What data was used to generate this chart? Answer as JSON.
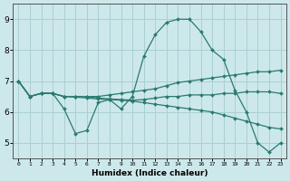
{
  "xlabel": "Humidex (Indice chaleur)",
  "xlim": [
    -0.5,
    23.5
  ],
  "ylim": [
    4.5,
    9.5
  ],
  "yticks": [
    5,
    6,
    7,
    8,
    9
  ],
  "xticks": [
    0,
    1,
    2,
    3,
    4,
    5,
    6,
    7,
    8,
    9,
    10,
    11,
    12,
    13,
    14,
    15,
    16,
    17,
    18,
    19,
    20,
    21,
    22,
    23
  ],
  "background_color": "#cde8ea",
  "grid_color": "#aacfd4",
  "line_color": "#2a7a70",
  "lines": [
    {
      "x": [
        0,
        1,
        2,
        3,
        4,
        5,
        6,
        7,
        8,
        9,
        10,
        11,
        12,
        13,
        14,
        15,
        16,
        17,
        18,
        19,
        20,
        21,
        22,
        23
      ],
      "y": [
        7.0,
        6.5,
        6.6,
        6.6,
        6.1,
        5.3,
        5.4,
        6.3,
        6.4,
        6.1,
        6.5,
        7.8,
        8.5,
        8.9,
        9.0,
        9.0,
        8.6,
        8.0,
        7.7,
        6.7,
        6.0,
        5.0,
        4.7,
        5.0
      ]
    },
    {
      "x": [
        0,
        1,
        2,
        3,
        4,
        5,
        6,
        7,
        8,
        9,
        10,
        11,
        12,
        13,
        14,
        15,
        16,
        17,
        18,
        19,
        20,
        21,
        22,
        23
      ],
      "y": [
        7.0,
        6.5,
        6.6,
        6.6,
        6.5,
        6.5,
        6.5,
        6.5,
        6.55,
        6.6,
        6.65,
        6.7,
        6.75,
        6.85,
        6.95,
        7.0,
        7.05,
        7.1,
        7.15,
        7.2,
        7.25,
        7.3,
        7.3,
        7.35
      ]
    },
    {
      "x": [
        0,
        1,
        2,
        3,
        4,
        5,
        6,
        7,
        8,
        9,
        10,
        11,
        12,
        13,
        14,
        15,
        16,
        17,
        18,
        19,
        20,
        21,
        22,
        23
      ],
      "y": [
        7.0,
        6.5,
        6.6,
        6.6,
        6.5,
        6.5,
        6.5,
        6.45,
        6.42,
        6.4,
        6.38,
        6.4,
        6.45,
        6.5,
        6.5,
        6.55,
        6.55,
        6.55,
        6.6,
        6.6,
        6.65,
        6.65,
        6.65,
        6.6
      ]
    },
    {
      "x": [
        0,
        1,
        2,
        3,
        4,
        5,
        6,
        7,
        8,
        9,
        10,
        11,
        12,
        13,
        14,
        15,
        16,
        17,
        18,
        19,
        20,
        21,
        22,
        23
      ],
      "y": [
        7.0,
        6.5,
        6.6,
        6.6,
        6.5,
        6.48,
        6.45,
        6.42,
        6.4,
        6.38,
        6.35,
        6.3,
        6.25,
        6.2,
        6.15,
        6.1,
        6.05,
        6.0,
        5.9,
        5.8,
        5.7,
        5.6,
        5.5,
        5.45
      ]
    }
  ]
}
